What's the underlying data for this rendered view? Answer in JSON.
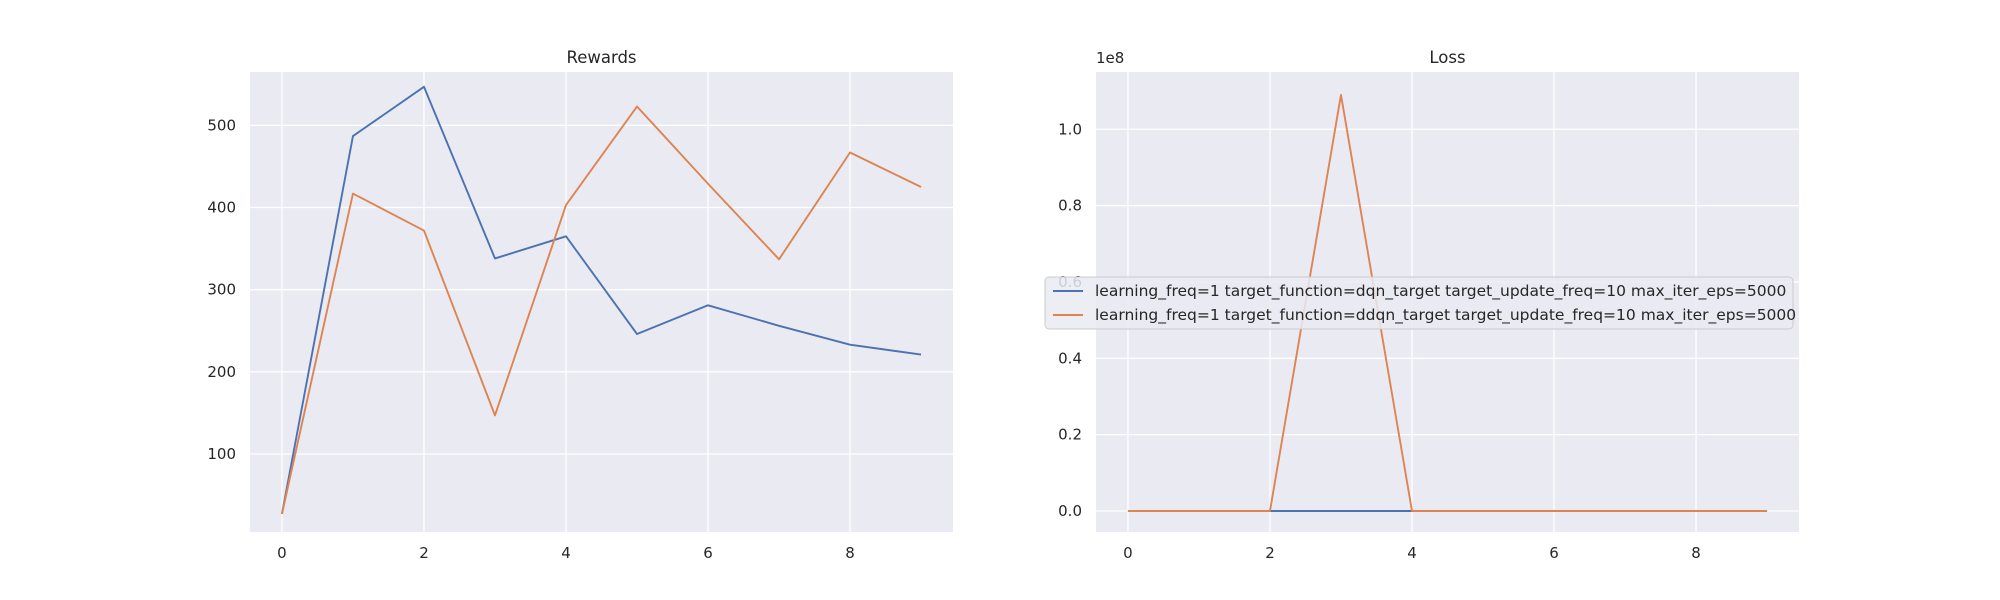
{
  "chart_data": [
    {
      "type": "line",
      "title": "Rewards",
      "xlabel": "",
      "ylabel": "",
      "x": [
        0,
        1,
        2,
        3,
        4,
        5,
        6,
        7,
        8,
        9
      ],
      "xlim": [
        -0.45,
        9.45
      ],
      "ylim": [
        5,
        565
      ],
      "xticks": [
        0,
        2,
        4,
        6,
        8
      ],
      "xtick_labels": [
        "0",
        "2",
        "4",
        "6",
        "8"
      ],
      "yticks": [
        100,
        200,
        300,
        400,
        500
      ],
      "ytick_labels": [
        "100",
        "200",
        "300",
        "400",
        "500"
      ],
      "grid": true,
      "series": [
        {
          "color": "#4c72b0",
          "values": [
            27,
            487,
            547,
            338,
            365,
            246,
            281,
            256,
            233,
            221
          ]
        },
        {
          "color": "#dd8452",
          "values": [
            27,
            417,
            372,
            147,
            403,
            523,
            429,
            337,
            467,
            425
          ]
        }
      ]
    },
    {
      "type": "line",
      "title": "Loss",
      "xlabel": "",
      "ylabel": "",
      "offset_label": "1e8",
      "x": [
        0,
        1,
        2,
        3,
        4,
        5,
        6,
        7,
        8,
        9
      ],
      "xlim": [
        -0.45,
        9.45
      ],
      "ylim": [
        -0.055,
        1.15
      ],
      "xticks": [
        0,
        2,
        4,
        6,
        8
      ],
      "xtick_labels": [
        "0",
        "2",
        "4",
        "6",
        "8"
      ],
      "yticks": [
        0.0,
        0.2,
        0.4,
        0.6,
        0.8,
        1.0
      ],
      "ytick_labels": [
        "0.0",
        "0.2",
        "0.4",
        "0.6",
        "0.8",
        "1.0"
      ],
      "grid": true,
      "legend": "center",
      "series": [
        {
          "name": "learning_freq=1 target_function=dqn_target target_update_freq=10 max_iter_eps=5000",
          "color": "#4c72b0",
          "values": [
            0,
            0,
            0,
            0,
            0,
            0,
            0,
            0,
            0,
            0
          ]
        },
        {
          "name": "learning_freq=1 target_function=ddqn_target target_update_freq=10 max_iter_eps=5000",
          "color": "#dd8452",
          "values": [
            0,
            0,
            0,
            1.09,
            0,
            0,
            0,
            0,
            0,
            0
          ]
        }
      ]
    }
  ]
}
